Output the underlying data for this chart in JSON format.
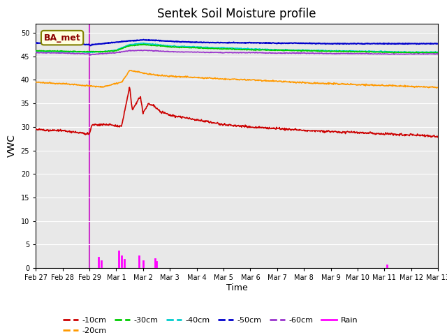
{
  "title": "Sentek Soil Moisture profile",
  "xlabel": "Time",
  "ylabel": "VWC",
  "annotation_text": "BA_met",
  "ylim": [
    0,
    52
  ],
  "yticks": [
    0,
    5,
    10,
    15,
    20,
    25,
    30,
    35,
    40,
    45,
    50
  ],
  "bg_color": "#e8e8e8",
  "line_colors": {
    "-10cm": "#cc0000",
    "-20cm": "#ff9900",
    "-30cm": "#00cc00",
    "-40cm": "#00cccc",
    "-50cm": "#0000cc",
    "-60cm": "#9933cc",
    "Rain": "#ff00ff",
    "vline": "#cc33cc"
  },
  "xtick_labels": [
    "Feb 27",
    "Feb 28",
    "Feb 29",
    "Mar 1",
    "Mar 2",
    "Mar 3",
    "Mar 4",
    "Mar 5",
    "Mar 6",
    "Mar 7",
    "Mar 8",
    "Mar 9",
    "Mar 10",
    "Mar 11",
    "Mar 12",
    "Mar 13"
  ],
  "xstart": 0.0,
  "xend": 15.0,
  "vline_x": 2.0,
  "rain_days": [
    2.35,
    2.45,
    3.1,
    3.2,
    3.3,
    3.85,
    4.0,
    4.45,
    4.5,
    13.1
  ],
  "rain_vals": [
    2.2,
    1.5,
    3.5,
    2.5,
    1.8,
    2.5,
    1.5,
    2.0,
    1.3,
    0.6
  ]
}
